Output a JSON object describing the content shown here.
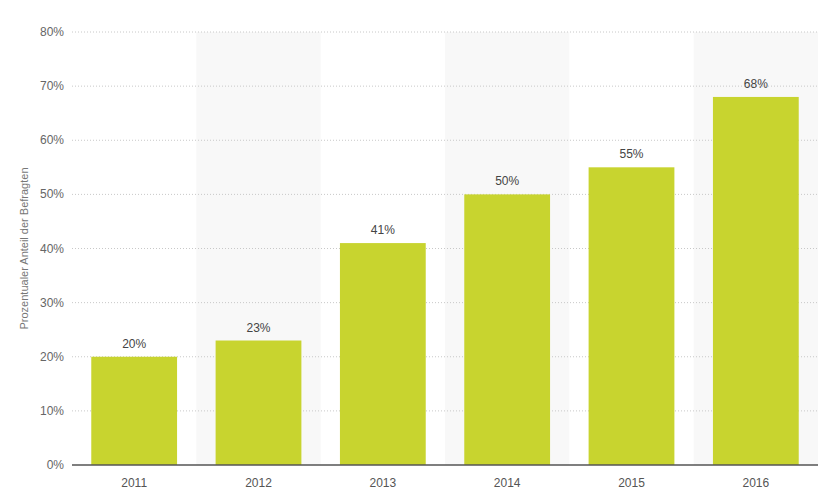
{
  "chart_data": {
    "type": "bar",
    "ylabel": "Prozentualer Anteil der Befragten",
    "categories": [
      "2011",
      "2012",
      "2013",
      "2014",
      "2015",
      "2016"
    ],
    "values": [
      20,
      23,
      41,
      50,
      55,
      68
    ],
    "value_labels": [
      "20%",
      "23%",
      "41%",
      "50%",
      "55%",
      "68%"
    ],
    "color": "#c8d42f",
    "ylim": [
      0,
      80
    ],
    "yticks": [
      {
        "value": 0,
        "label": "0%"
      },
      {
        "value": 10,
        "label": "10%"
      },
      {
        "value": 20,
        "label": "20%"
      },
      {
        "value": 30,
        "label": "30%"
      },
      {
        "value": 40,
        "label": "40%"
      },
      {
        "value": 50,
        "label": "50%"
      },
      {
        "value": 60,
        "label": "60%"
      },
      {
        "value": 70,
        "label": "70%"
      },
      {
        "value": 80,
        "label": "80%"
      }
    ],
    "grid": true,
    "data_labels": true
  }
}
